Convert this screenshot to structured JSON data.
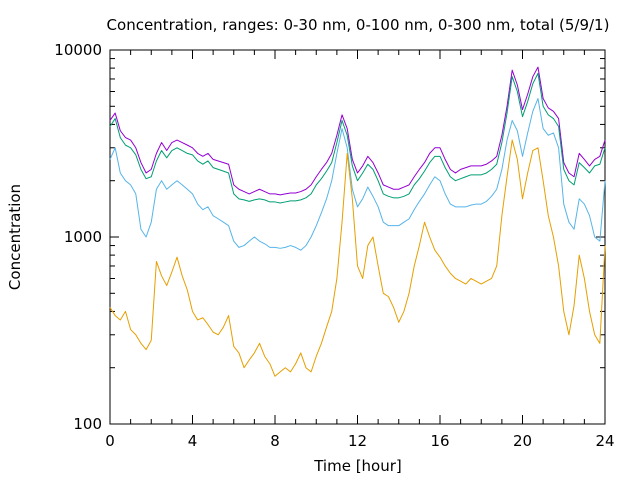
{
  "chart_data": {
    "type": "line",
    "title": "Concentration, ranges: 0-30 nm, 0-100 nm, 0-300 nm, total (5/9/1)",
    "xlabel": "Time [hour]",
    "ylabel": "Concentration",
    "xlim": [
      0,
      24
    ],
    "ylim": [
      100,
      10000
    ],
    "yscale": "log",
    "grid": false,
    "legend": "none",
    "x_ticks": [
      0,
      4,
      8,
      12,
      16,
      20,
      24
    ],
    "x_tick_labels": [
      "0",
      "4",
      "8",
      "12",
      "16",
      "20",
      "24"
    ],
    "y_ticks": [
      100,
      1000,
      10000
    ],
    "y_tick_labels": [
      "100",
      "1000",
      "10000"
    ],
    "x": [
      0,
      0.25,
      0.5,
      0.75,
      1.0,
      1.25,
      1.5,
      1.75,
      2.0,
      2.25,
      2.5,
      2.75,
      3.0,
      3.25,
      3.5,
      3.75,
      4.0,
      4.25,
      4.5,
      4.75,
      5.0,
      5.25,
      5.5,
      5.75,
      6.0,
      6.25,
      6.5,
      6.75,
      7.0,
      7.25,
      7.5,
      7.75,
      8.0,
      8.25,
      8.5,
      8.75,
      9.0,
      9.25,
      9.5,
      9.75,
      10.0,
      10.25,
      10.5,
      10.75,
      11.0,
      11.25,
      11.5,
      11.75,
      12.0,
      12.25,
      12.5,
      12.75,
      13.0,
      13.25,
      13.5,
      13.75,
      14.0,
      14.25,
      14.5,
      14.75,
      15.0,
      15.25,
      15.5,
      15.75,
      16.0,
      16.25,
      16.5,
      16.75,
      17.0,
      17.25,
      17.5,
      17.75,
      18.0,
      18.25,
      18.5,
      18.75,
      19.0,
      19.25,
      19.5,
      19.75,
      20.0,
      20.25,
      20.5,
      20.75,
      21.0,
      21.25,
      21.5,
      21.75,
      22.0,
      22.25,
      22.5,
      22.75,
      23.0,
      23.25,
      23.5,
      23.75,
      24.0
    ],
    "series": [
      {
        "color": "#9400d3",
        "values": [
          4200,
          4600,
          3700,
          3400,
          3300,
          3000,
          2500,
          2200,
          2300,
          2800,
          3200,
          2900,
          3200,
          3300,
          3200,
          3100,
          3000,
          2800,
          2700,
          2800,
          2600,
          2550,
          2500,
          2450,
          1900,
          1800,
          1750,
          1700,
          1750,
          1800,
          1750,
          1700,
          1700,
          1680,
          1700,
          1720,
          1720,
          1750,
          1800,
          1900,
          2100,
          2300,
          2500,
          2800,
          3500,
          4500,
          3800,
          2600,
          2200,
          2400,
          2700,
          2500,
          2200,
          1900,
          1850,
          1800,
          1800,
          1850,
          1900,
          2100,
          2300,
          2500,
          2800,
          3000,
          3000,
          2600,
          2300,
          2200,
          2300,
          2350,
          2400,
          2400,
          2400,
          2450,
          2550,
          2700,
          3500,
          5000,
          7800,
          6500,
          4800,
          5800,
          7200,
          8100,
          5500,
          4900,
          4700,
          4300,
          2500,
          2200,
          2100,
          2800,
          2600,
          2400,
          2600,
          2700,
          3300
        ]
      },
      {
        "color": "#009e73",
        "values": [
          3900,
          4300,
          3400,
          3100,
          3000,
          2750,
          2300,
          2050,
          2100,
          2550,
          2900,
          2650,
          2900,
          3000,
          2900,
          2800,
          2750,
          2550,
          2450,
          2550,
          2350,
          2300,
          2250,
          2200,
          1700,
          1600,
          1580,
          1550,
          1580,
          1600,
          1580,
          1540,
          1540,
          1520,
          1540,
          1560,
          1560,
          1580,
          1620,
          1700,
          1900,
          2050,
          2250,
          2500,
          3200,
          4200,
          3500,
          2400,
          2000,
          2200,
          2450,
          2300,
          2000,
          1700,
          1650,
          1620,
          1620,
          1650,
          1700,
          1900,
          2050,
          2250,
          2500,
          2700,
          2700,
          2350,
          2100,
          2000,
          2050,
          2100,
          2150,
          2150,
          2150,
          2200,
          2300,
          2450,
          3200,
          4600,
          7200,
          6000,
          4400,
          5300,
          6600,
          7500,
          5000,
          4500,
          4300,
          3900,
          2300,
          2000,
          1900,
          2500,
          2350,
          2200,
          2400,
          2450,
          3000
        ]
      },
      {
        "color": "#56b4e9",
        "values": [
          2600,
          3000,
          2200,
          2000,
          1900,
          1700,
          1100,
          1000,
          1200,
          1800,
          2000,
          1800,
          1900,
          2000,
          1900,
          1800,
          1700,
          1500,
          1400,
          1450,
          1300,
          1250,
          1200,
          1150,
          950,
          880,
          900,
          950,
          1000,
          950,
          920,
          880,
          880,
          870,
          880,
          900,
          880,
          850,
          900,
          1000,
          1150,
          1350,
          1600,
          2000,
          2800,
          3800,
          3000,
          1800,
          1450,
          1600,
          1850,
          1650,
          1450,
          1200,
          1150,
          1150,
          1150,
          1200,
          1250,
          1400,
          1550,
          1700,
          1900,
          2100,
          2000,
          1700,
          1500,
          1450,
          1450,
          1450,
          1480,
          1500,
          1500,
          1550,
          1650,
          1800,
          2300,
          3300,
          4200,
          3700,
          2700,
          3600,
          4700,
          5500,
          3800,
          3500,
          3600,
          3000,
          1500,
          1200,
          1100,
          1600,
          1500,
          1300,
          1000,
          950,
          2000
        ]
      },
      {
        "color": "#e69f00",
        "values": [
          420,
          380,
          360,
          400,
          320,
          300,
          270,
          250,
          280,
          740,
          620,
          550,
          650,
          780,
          620,
          520,
          400,
          360,
          370,
          340,
          310,
          300,
          330,
          380,
          260,
          240,
          200,
          220,
          240,
          270,
          230,
          210,
          180,
          190,
          200,
          190,
          210,
          240,
          200,
          190,
          230,
          270,
          330,
          400,
          600,
          1200,
          2800,
          1600,
          700,
          600,
          900,
          1000,
          700,
          500,
          480,
          420,
          350,
          400,
          500,
          700,
          900,
          1200,
          1000,
          850,
          780,
          700,
          640,
          600,
          580,
          560,
          600,
          580,
          560,
          580,
          600,
          700,
          1300,
          2100,
          3300,
          2600,
          1600,
          2200,
          2900,
          3000,
          2000,
          1300,
          1000,
          700,
          400,
          300,
          430,
          800,
          600,
          400,
          300,
          270,
          900
        ]
      }
    ]
  }
}
